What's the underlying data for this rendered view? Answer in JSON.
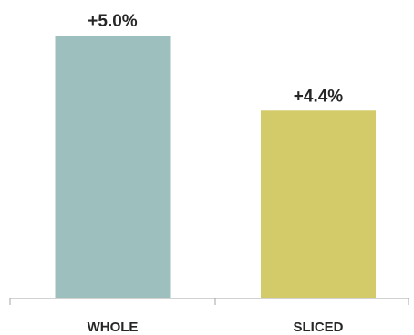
{
  "chart_data": {
    "type": "bar",
    "categories": [
      "WHOLE",
      "SLICED"
    ],
    "values": [
      5.0,
      4.4
    ],
    "data_labels": [
      "+5.0%",
      "+4.4%"
    ],
    "colors": [
      "#9dbfbe",
      "#d3ca6a"
    ],
    "title": "",
    "xlabel": "",
    "ylabel": "",
    "ylim": [
      2.9,
      5.0
    ],
    "grid": false,
    "legend": "none"
  }
}
